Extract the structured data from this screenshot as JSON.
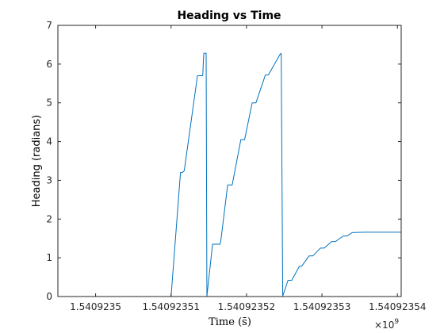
{
  "chart_data": {
    "type": "line",
    "title": "Heading vs Time",
    "xlabel": "Time (s̄)",
    "ylabel": "Heading (radians)",
    "x_multiplier": {
      "base": "×10",
      "exponent": "9"
    },
    "xlim": [
      1540923450,
      1540923541
    ],
    "ylim": [
      0,
      7
    ],
    "x_ticks": [
      1540923460,
      1540923480,
      1540923500,
      1540923520,
      1540923540
    ],
    "x_tick_labels": [
      "1.5409235",
      "1.54092351",
      "1.54092352",
      "1.54092353",
      "1.54092354"
    ],
    "y_ticks": [
      0,
      1,
      2,
      3,
      4,
      5,
      6,
      7
    ],
    "y_tick_labels": [
      "0",
      "1",
      "2",
      "3",
      "4",
      "5",
      "6",
      "7"
    ],
    "grid": false,
    "series": [
      {
        "color": "#0072BD",
        "x": [
          1540923455,
          1540923480,
          1540923482.5,
          1540923483,
          1540923483.5,
          1540923487,
          1540923488.4,
          1540923488.6,
          1540923488.7,
          1540923489.3,
          1540923489.5,
          1540923491,
          1540923493,
          1540923493.2,
          1540923495,
          1540923496.2,
          1540923498.5,
          1540923499.5,
          1540923501.5,
          1540923502.5,
          1540923505,
          1540923505.8,
          1540923509,
          1540923509.2,
          1540923509.6,
          1540923511,
          1540923512,
          1540923514,
          1540923514.6,
          1540923516.6,
          1540923517.6,
          1540923519.6,
          1540923520.6,
          1540923522.6,
          1540923523.6,
          1540923525.6,
          1540923526.6,
          1540923528,
          1540923531,
          1540923541
        ],
        "y": [
          0,
          0,
          3.2,
          3.2,
          3.25,
          5.7,
          5.7,
          6.15,
          6.28,
          6.28,
          0.01,
          1.35,
          1.35,
          1.45,
          2.88,
          2.88,
          4.05,
          4.05,
          5.0,
          5.0,
          5.72,
          5.72,
          6.27,
          6.27,
          0.01,
          0.42,
          0.42,
          0.78,
          0.78,
          1.05,
          1.05,
          1.25,
          1.25,
          1.42,
          1.42,
          1.56,
          1.56,
          1.65,
          1.66,
          1.66
        ]
      }
    ]
  }
}
